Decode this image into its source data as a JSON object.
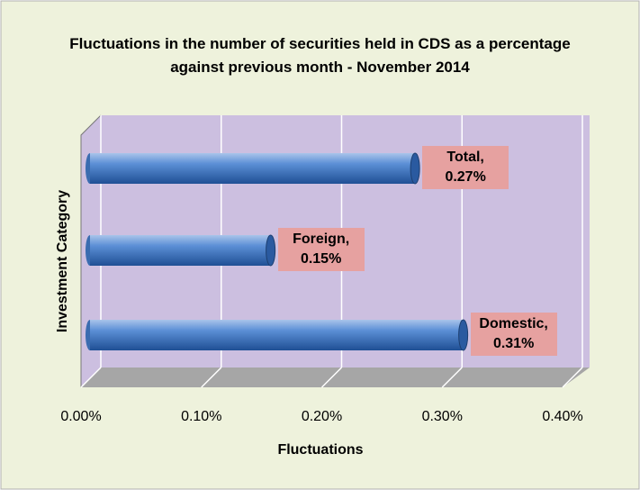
{
  "chart_data": {
    "type": "bar",
    "orientation": "horizontal",
    "title": "Fluctuations in the number of securities held in CDS as a percentage against previous month - November 2014",
    "x_label": "Fluctuations",
    "y_label": "Investment Category",
    "values": [
      0.31,
      0.15,
      0.27
    ],
    "value_labels": [
      "Domestic, 0.31%",
      "Foreign, 0.15%",
      "Total, 0.27%"
    ],
    "color": "#4f81bd",
    "xlim": [
      0,
      0.4
    ],
    "xticks": [
      {
        "value": 0,
        "label": "0.00%"
      },
      {
        "value": 0.1,
        "label": "0.10%"
      },
      {
        "value": 0.2,
        "label": "0.20%"
      },
      {
        "value": 0.3,
        "label": "0.30%"
      },
      {
        "value": 0.4,
        "label": "0.40%"
      }
    ],
    "grid": true
  }
}
